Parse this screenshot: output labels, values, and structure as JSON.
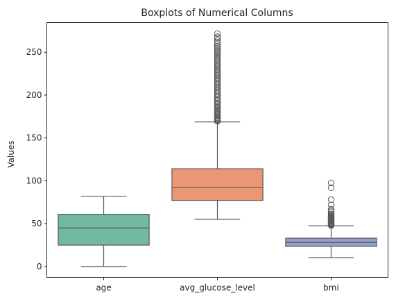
{
  "chart_data": {
    "type": "box",
    "title": "Boxplots of Numerical Columns",
    "xlabel": "",
    "ylabel": "Values",
    "ylim": [
      -12.6,
      284.6
    ],
    "yticks": [
      0,
      50,
      100,
      150,
      200,
      250
    ],
    "grid": false,
    "categories": [
      "age",
      "avg_glucose_level",
      "bmi"
    ],
    "boxes": [
      {
        "category": "age",
        "color": "#72b8a2",
        "whisker_low": 0.08,
        "q1": 25,
        "median": 45,
        "q3": 61,
        "whisker_high": 82,
        "outliers": []
      },
      {
        "category": "avg_glucose_level",
        "color": "#ec9774",
        "whisker_low": 55.1,
        "q1": 77.2,
        "median": 91.9,
        "q3": 114.1,
        "whisker_high": 168.7,
        "outliers": [
          169.5,
          170.5,
          171.5,
          172.7,
          173.8,
          175.0,
          176.2,
          177.5,
          178.8,
          180.1,
          181.5,
          183.0,
          184.4,
          185.9,
          187.5,
          189.0,
          190.6,
          192.2,
          193.8,
          195.4,
          197.0,
          198.7,
          200.3,
          202.0,
          203.7,
          205.4,
          207.1,
          208.9,
          210.6,
          212.3,
          214.0,
          215.8,
          217.5,
          219.3,
          221.0,
          222.8,
          224.6,
          226.4,
          228.1,
          229.9,
          231.7,
          233.5,
          235.3,
          237.1,
          238.8,
          240.6,
          242.3,
          244.1,
          246.0,
          247.9,
          249.8,
          251.6,
          253.4,
          255.2,
          257.0,
          259.2,
          261.4,
          263.6,
          266.6,
          268.0,
          271.7
        ]
      },
      {
        "category": "bmi",
        "color": "#929fcc",
        "whisker_low": 10.3,
        "q1": 23.5,
        "median": 28.1,
        "q3": 33.1,
        "whisker_high": 47.5,
        "outliers": [
          47.9,
          48.4,
          48.9,
          49.3,
          49.8,
          50.3,
          50.9,
          51.5,
          52.3,
          53.1,
          53.8,
          54.6,
          55.2,
          55.9,
          56.6,
          57.3,
          58.1,
          59.1,
          60.2,
          61.2,
          63.3,
          64.8,
          66.8,
          71.9,
          78.0,
          92.0,
          97.6
        ]
      }
    ]
  }
}
